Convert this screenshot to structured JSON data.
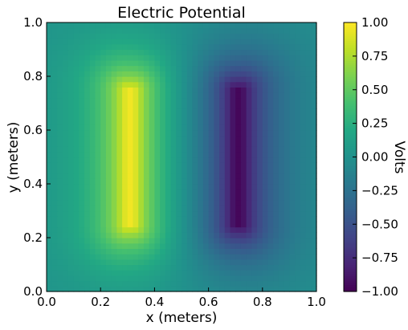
{
  "chart_data": {
    "type": "heatmap",
    "title": "Electric Potential",
    "xlabel": "x (meters)",
    "ylabel": "y (meters)",
    "xlim": [
      0.0,
      1.0
    ],
    "ylim": [
      0.0,
      1.0
    ],
    "x_ticks": [
      "0.0",
      "0.2",
      "0.4",
      "0.6",
      "0.8",
      "1.0"
    ],
    "y_ticks": [
      "0.0",
      "0.2",
      "0.4",
      "0.6",
      "0.8",
      "1.0"
    ],
    "grid": false,
    "colormap": "viridis",
    "grid_size": 50,
    "colorbar": {
      "label": "Volts",
      "range": [
        -1.0,
        1.0
      ],
      "ticks": [
        "−1.00",
        "−0.75",
        "−0.50",
        "−0.25",
        "0.00",
        "0.25",
        "0.50",
        "0.75",
        "1.00"
      ]
    },
    "sources": [
      {
        "x": 0.31,
        "y_range": [
          0.25,
          0.75
        ],
        "potential": 1.0
      },
      {
        "x": 0.71,
        "y_range": [
          0.25,
          0.75
        ],
        "potential": -1.0
      }
    ]
  }
}
